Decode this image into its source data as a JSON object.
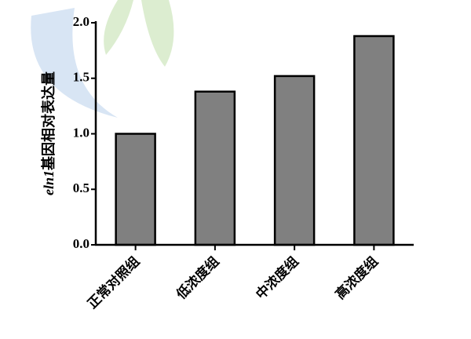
{
  "chart_data": {
    "type": "bar",
    "ylabel": {
      "gene": "eln1",
      "text": "基因相对表达量"
    },
    "categories": [
      "正常对照组",
      "低浓度组",
      "中浓度组",
      "高浓度组"
    ],
    "values": [
      1.0,
      1.38,
      1.52,
      1.88
    ],
    "color": "#808080",
    "ylim": [
      0,
      2.0
    ],
    "yticks": [
      {
        "value": 0,
        "label": "0.0"
      },
      0.5,
      {
        "value": 1,
        "label": "1.0"
      },
      1.5,
      {
        "value": 2,
        "label": "2.0"
      }
    ]
  }
}
